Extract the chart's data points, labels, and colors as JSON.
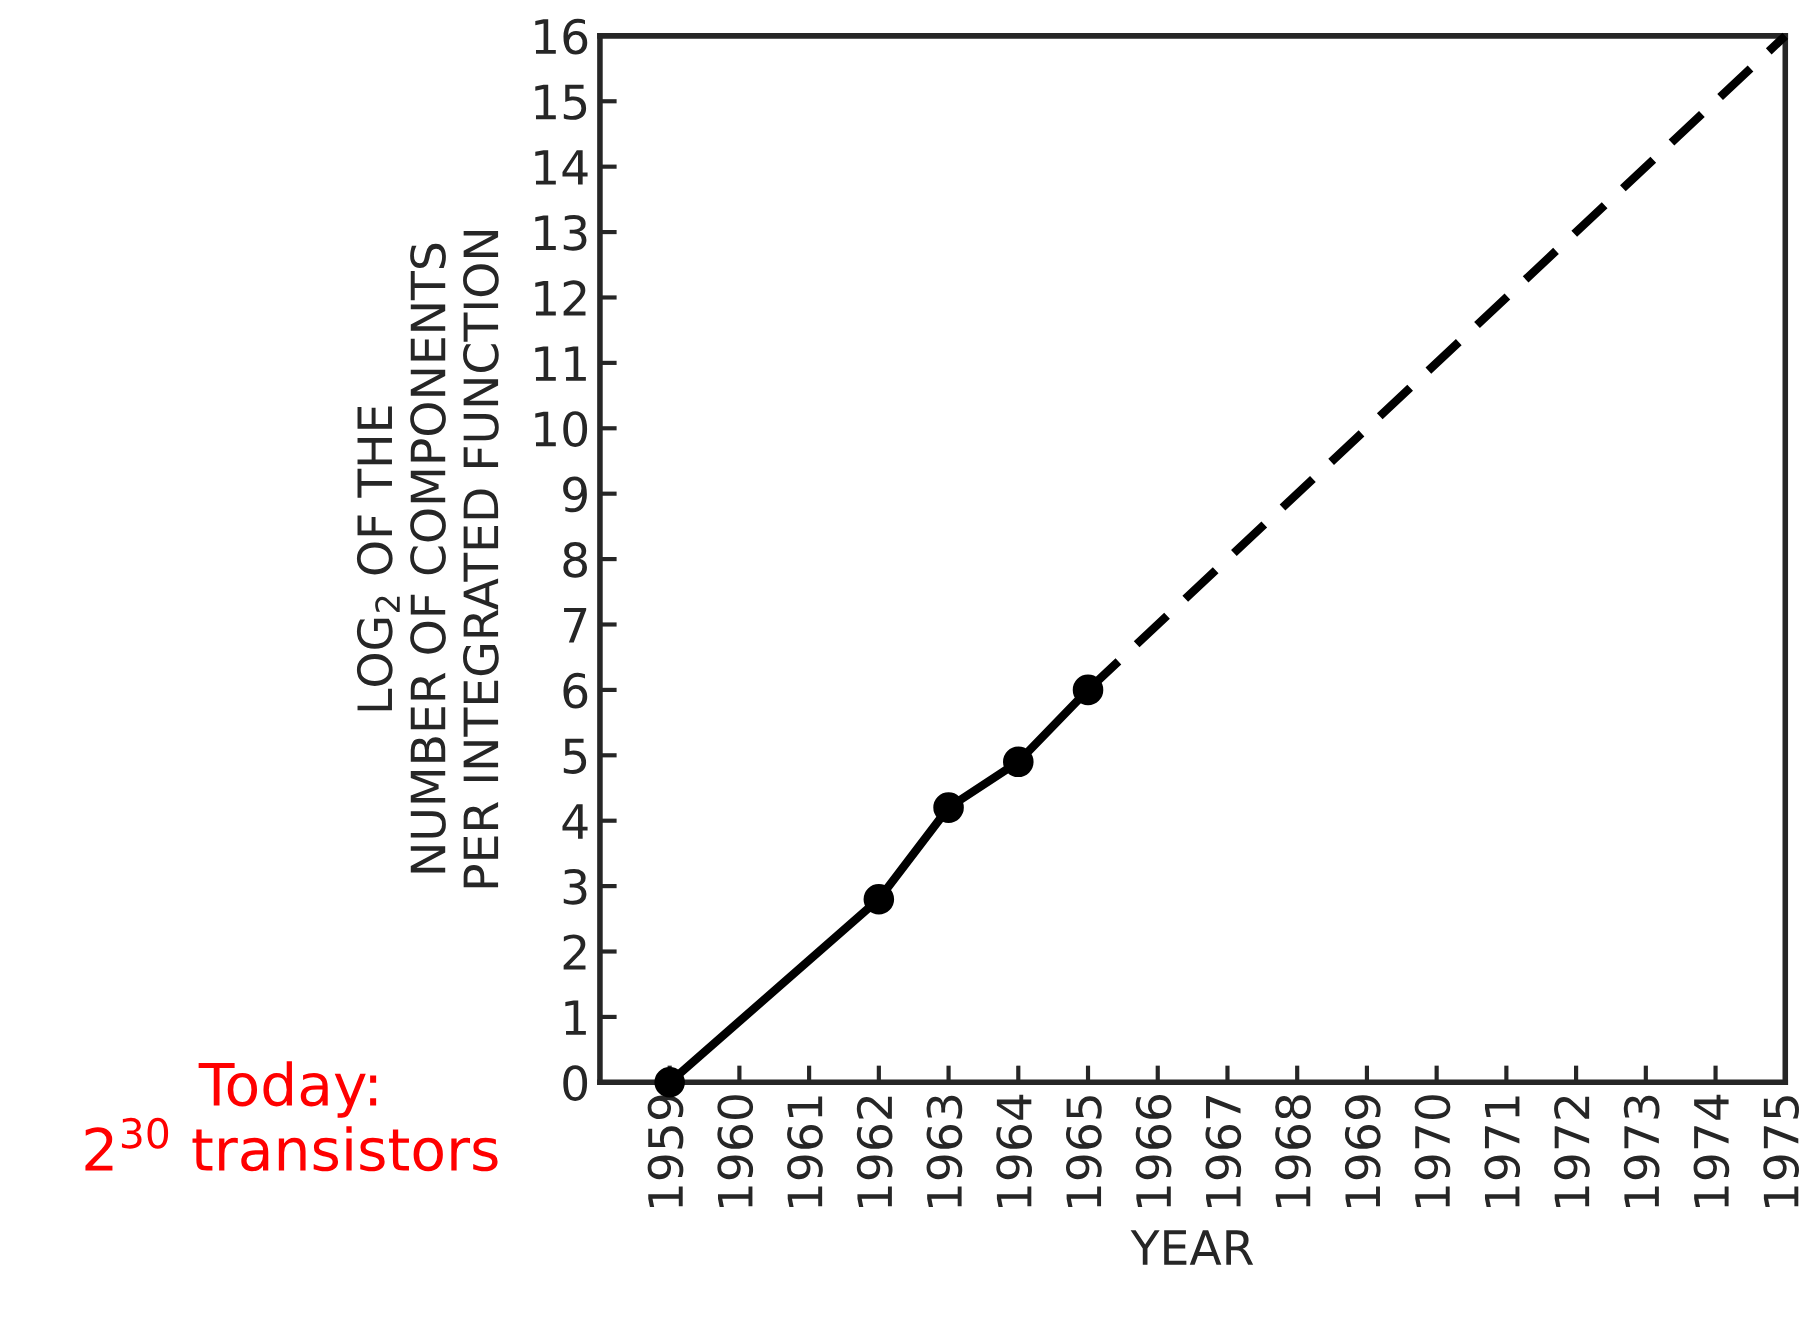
{
  "chart_data": {
    "type": "line",
    "xlabel": "YEAR",
    "ylabel": "LOG$_{2}$ OF THE\nNUMBER OF COMPONENTS\nPER INTEGRATED FUNCTION",
    "series": [
      {
        "color": "#000000",
        "x": [
          1959,
          1962,
          1963,
          1964,
          1965
        ],
        "values": [
          0,
          2.8,
          4.2,
          4.9,
          6
        ],
        "marker": "circle",
        "line_style": "solid"
      },
      {
        "color": "#000000",
        "x": [
          1965,
          1975
        ],
        "values": [
          6,
          16
        ],
        "marker": "none",
        "line_style": "dashed"
      }
    ],
    "xlim": [
      1958,
      1975
    ],
    "xticks": [
      1959,
      1960,
      1961,
      1962,
      1963,
      1964,
      1965,
      1966,
      1967,
      1968,
      1969,
      1970,
      1971,
      1972,
      1973,
      1974,
      1975
    ],
    "ylim": [
      0,
      16
    ],
    "yticks": [
      0,
      1,
      2,
      3,
      4,
      5,
      6,
      7,
      8,
      9,
      10,
      11,
      12,
      13,
      14,
      15,
      16
    ],
    "grid": false,
    "legend": false,
    "annotations": [
      "Today:\n2$^{30}$ transistors"
    ]
  }
}
